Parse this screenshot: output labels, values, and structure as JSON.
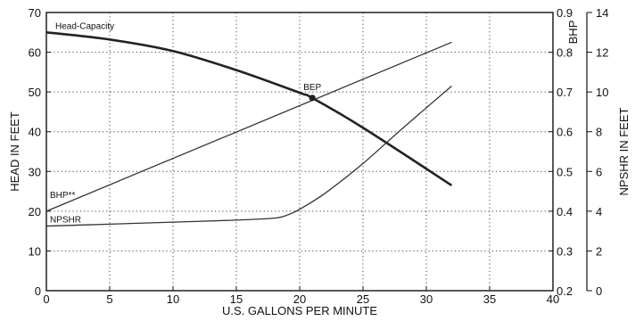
{
  "chart_data": {
    "type": "line",
    "title": "",
    "xlabel": "U.S. GALLONS PER MINUTE",
    "ylabel_left": "HEAD IN FEET",
    "ylabel_right_inner": "BHP",
    "ylabel_right_outer": "NPSHR IN FEET",
    "x_range": [
      0,
      40
    ],
    "head_range": [
      0,
      70
    ],
    "bhp_range": [
      0.2,
      0.9
    ],
    "npshr_range": [
      0,
      14
    ],
    "grid": true,
    "x_ticks": [
      "0",
      "5",
      "10",
      "15",
      "20",
      "25",
      "30",
      "35",
      "40"
    ],
    "head_ticks": [
      "0",
      "10",
      "20",
      "30",
      "40",
      "50",
      "60",
      "70"
    ],
    "bhp_ticks": [
      "0.2",
      "0.3",
      "0.4",
      "0.5",
      "0.6",
      "0.7",
      "0.8",
      "0.9"
    ],
    "npshr_ticks": [
      "0",
      "2",
      "4",
      "6",
      "8",
      "10",
      "12",
      "14"
    ],
    "series": [
      {
        "name": "Head-Capacity",
        "axis": "head",
        "x": [
          0,
          5,
          10,
          15,
          20,
          21,
          25,
          32
        ],
        "y": [
          65,
          63.2,
          60.3,
          55.5,
          49.8,
          48.5,
          41.0,
          26.5
        ]
      },
      {
        "name": "BHP**",
        "axis": "bhp",
        "x": [
          0,
          32
        ],
        "y": [
          0.4,
          0.825
        ]
      },
      {
        "name": "NPSHR",
        "axis": "npshr",
        "x": [
          0,
          5,
          10,
          15,
          18,
          19,
          20,
          22,
          25,
          28,
          32
        ],
        "y": [
          3.25,
          3.35,
          3.45,
          3.55,
          3.65,
          3.8,
          4.1,
          4.9,
          6.4,
          8.1,
          10.3
        ]
      }
    ],
    "annotations": [
      {
        "text": "BEP",
        "x": 21,
        "head": 48.5
      }
    ]
  }
}
